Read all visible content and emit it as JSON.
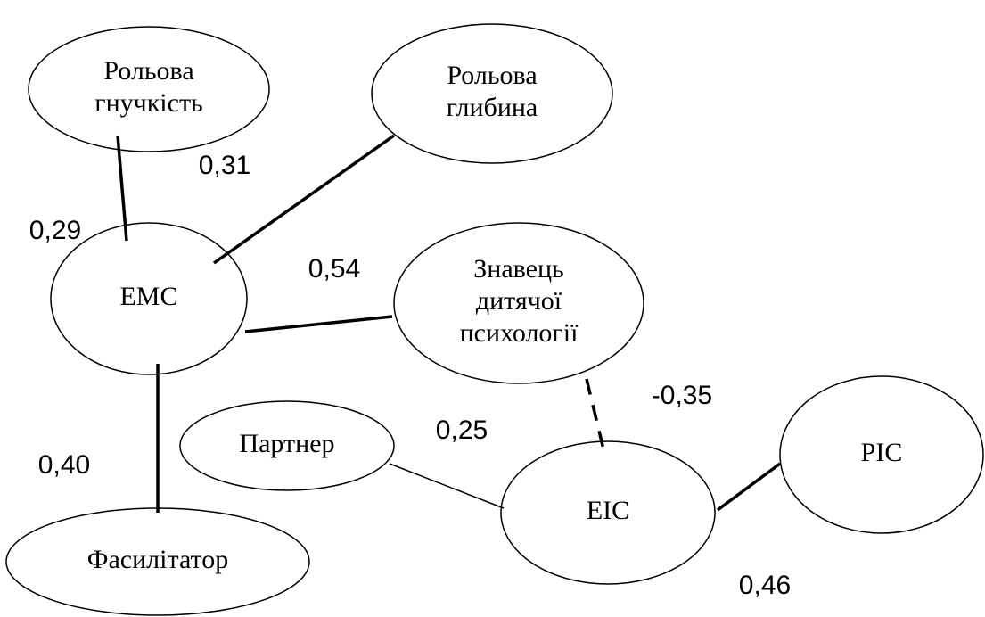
{
  "nodes": [
    {
      "label": [
        "Рольова",
        "гнучкість"
      ]
    },
    {
      "label": [
        "Рольова",
        "глибина"
      ]
    },
    {
      "label": [
        "ЕМС"
      ]
    },
    {
      "label": [
        "Знавець",
        "дитячої",
        "психології"
      ]
    },
    {
      "label": [
        "Партнер"
      ]
    },
    {
      "label": [
        "ЕІС"
      ]
    },
    {
      "label": [
        "РІС"
      ]
    },
    {
      "label": [
        "Фасилітатор"
      ]
    }
  ],
  "edges": [
    {
      "label": "0,29"
    },
    {
      "label": "0,31"
    },
    {
      "label": "0,54"
    },
    {
      "label": "0,40"
    },
    {
      "label": "-0,35"
    },
    {
      "label": "0,25"
    },
    {
      "label": "0,46"
    }
  ]
}
